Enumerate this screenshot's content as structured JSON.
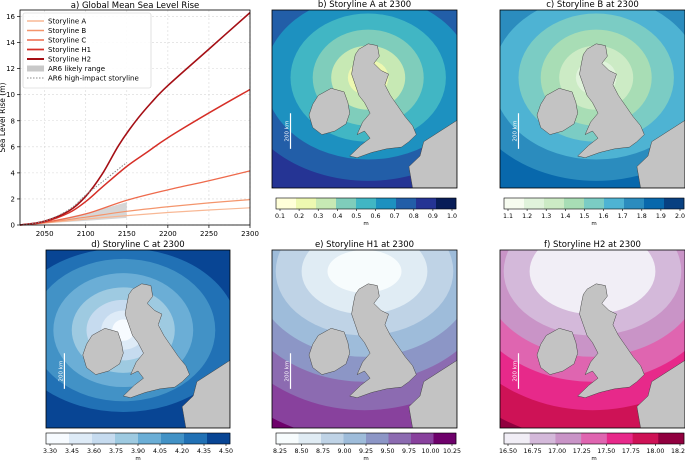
{
  "chart_data": [
    {
      "type": "line",
      "title": "a) Global Mean Sea Level Rise",
      "xlabel": "",
      "ylabel": "Sea Level Rise (m)",
      "xlim": [
        2020,
        2300
      ],
      "ylim": [
        0,
        16.5
      ],
      "x_ticks": [
        2050,
        2100,
        2150,
        2200,
        2250,
        2300
      ],
      "y_ticks": [
        0,
        2,
        4,
        6,
        8,
        10,
        12,
        14,
        16
      ],
      "grid": true,
      "legend_position": "upper-left",
      "series": [
        {
          "name": "Storyline A",
          "color": "#f8b895",
          "width": 1.2,
          "x": [
            2020,
            2050,
            2100,
            2150,
            2200,
            2250,
            2300
          ],
          "y": [
            0,
            0.15,
            0.45,
            0.72,
            0.96,
            1.15,
            1.32
          ]
        },
        {
          "name": "Storyline B",
          "color": "#f4956c",
          "width": 1.2,
          "x": [
            2020,
            2050,
            2100,
            2150,
            2200,
            2250,
            2300
          ],
          "y": [
            0,
            0.17,
            0.6,
            1.05,
            1.4,
            1.7,
            1.95
          ]
        },
        {
          "name": "Storyline C",
          "color": "#ee6a4c",
          "width": 1.3,
          "x": [
            2020,
            2050,
            2100,
            2150,
            2200,
            2250,
            2300
          ],
          "y": [
            0,
            0.2,
            0.85,
            1.9,
            2.7,
            3.4,
            4.15
          ]
        },
        {
          "name": "Storyline H1",
          "color": "#d62f27",
          "width": 1.5,
          "x": [
            2020,
            2050,
            2080,
            2100,
            2120,
            2150,
            2175,
            2200,
            2250,
            2300
          ],
          "y": [
            0,
            0.25,
            0.95,
            1.8,
            2.9,
            4.5,
            5.6,
            6.7,
            8.6,
            10.4
          ]
        },
        {
          "name": "Storyline H2",
          "color": "#a50f15",
          "width": 1.6,
          "x": [
            2020,
            2050,
            2080,
            2100,
            2120,
            2140,
            2160,
            2180,
            2200,
            2250,
            2300
          ],
          "y": [
            0,
            0.3,
            1.1,
            2.2,
            3.9,
            6.1,
            7.9,
            9.4,
            10.7,
            13.5,
            16.3
          ]
        }
      ],
      "likely_range": {
        "name": "AR6 likely range",
        "color": "#c8c8c8",
        "x": [
          2020,
          2050,
          2100,
          2150
        ],
        "lower": [
          0,
          0.12,
          0.32,
          0.55
        ],
        "upper": [
          0,
          0.2,
          0.9,
          1.75
        ]
      },
      "high_impact": {
        "name": "AR6 high-impact storyline",
        "color": "#888888",
        "x": [
          2020,
          2050,
          2080,
          2100,
          2120,
          2140,
          2150
        ],
        "y": [
          0,
          0.3,
          1.2,
          2.3,
          3.3,
          4.3,
          4.8
        ]
      }
    },
    {
      "type": "heatmap",
      "title": "b) Storyline A at 2300",
      "colorbar": {
        "label": "m",
        "ticks": [
          "0.1",
          "0.2",
          "0.3",
          "0.4",
          "0.5",
          "0.6",
          "0.7",
          "0.8",
          "0.9",
          "1.0"
        ],
        "colors": [
          "#ffffd9",
          "#edf8b1",
          "#c7e9b4",
          "#7fcdbb",
          "#41b6c4",
          "#1d91c0",
          "#225ea8",
          "#253494",
          "#081d58"
        ]
      },
      "levels": [
        0.1,
        1.0
      ],
      "scale_label": "200 km"
    },
    {
      "type": "heatmap",
      "title": "c) Storyline B at 2300",
      "colorbar": {
        "label": "m",
        "ticks": [
          "1.1",
          "1.2",
          "1.3",
          "1.4",
          "1.5",
          "1.6",
          "1.7",
          "1.8",
          "1.9",
          "2.0"
        ],
        "colors": [
          "#f7fcf0",
          "#e0f3db",
          "#ccebc5",
          "#a8ddb5",
          "#7bccc4",
          "#4eb3d3",
          "#2b8cbe",
          "#0868ac",
          "#084081"
        ]
      },
      "levels": [
        1.1,
        2.0
      ],
      "scale_label": "200 km"
    },
    {
      "type": "heatmap",
      "title": "d) Storyline C at 2300",
      "colorbar": {
        "label": "m",
        "ticks": [
          "3.30",
          "3.45",
          "3.60",
          "3.75",
          "3.90",
          "4.05",
          "4.20",
          "4.35",
          "4.50"
        ],
        "colors": [
          "#f7fbff",
          "#deebf7",
          "#c6dbef",
          "#9ecae1",
          "#6baed6",
          "#4292c6",
          "#2171b5",
          "#084594"
        ]
      },
      "levels": [
        3.3,
        4.5
      ],
      "scale_label": "200 km"
    },
    {
      "type": "heatmap",
      "title": "e) Storyline H1 at 2300",
      "colorbar": {
        "label": "m",
        "ticks": [
          "8.25",
          "8.50",
          "8.75",
          "9.00",
          "9.25",
          "9.50",
          "9.75",
          "10.00",
          "10.25"
        ],
        "colors": [
          "#f7fcfd",
          "#e0ecf4",
          "#bfd3e6",
          "#9ebcda",
          "#8c96c6",
          "#8c6bb1",
          "#88419d",
          "#6e016b"
        ]
      },
      "levels": [
        8.25,
        10.25
      ],
      "scale_label": "200 km"
    },
    {
      "type": "heatmap",
      "title": "f) Storyline H2 at 2300",
      "colorbar": {
        "label": "m",
        "ticks": [
          "16.50",
          "16.75",
          "17.00",
          "17.25",
          "17.50",
          "17.75",
          "18.00",
          "18.25"
        ],
        "colors": [
          "#f1eef6",
          "#d4b9da",
          "#c994c7",
          "#df65b0",
          "#e7298a",
          "#ce1256",
          "#91003f"
        ]
      },
      "levels": [
        16.5,
        18.25
      ],
      "scale_label": "200 km"
    }
  ]
}
